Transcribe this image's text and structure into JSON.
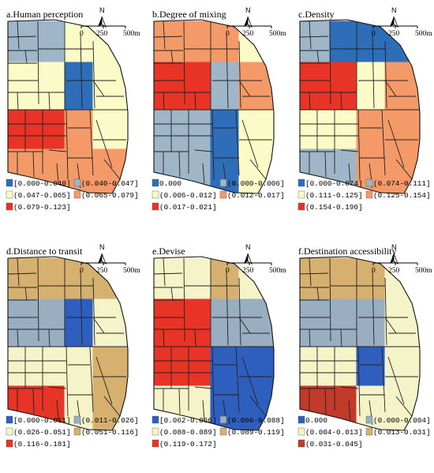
{
  "colors": {
    "c1": "#2e6db8",
    "c2": "#9fb5c8",
    "c3": "#fbfbc8",
    "c4": "#f49a68",
    "c5": "#e83426",
    "g1": "#2f5fbe",
    "g2": "#9aaec2",
    "g3": "#f5f3c8",
    "g4": "#d5b06e",
    "g5": "#c23a2a"
  },
  "scale": {
    "zero": "0",
    "mid": "250",
    "end": "500m"
  },
  "north_label": "N",
  "panels": [
    {
      "title": "a.Human perception",
      "palette": [
        "c1",
        "c2",
        "c3",
        "c4",
        "c5"
      ],
      "legend": [
        "[0.000-0.040]",
        "(0.040-0.047]",
        "(0.047-0.065]",
        "(0.065-0.079]",
        "(0.079-0.123]"
      ],
      "cells": [
        [
          2,
          2,
          3,
          3
        ],
        [
          3,
          3,
          1,
          3
        ],
        [
          5,
          5,
          4,
          3
        ],
        [
          4,
          4,
          4,
          4
        ]
      ]
    },
    {
      "title": "b.Degree of mixing",
      "palette": [
        "c1",
        "c2",
        "c3",
        "c4",
        "c5"
      ],
      "legend": [
        "0.000",
        "(0.000-0.006]",
        "(0.006-0.012]",
        "(0.012-0.017]",
        "(0.017-0.021]"
      ],
      "cells": [
        [
          4,
          4,
          4,
          3
        ],
        [
          5,
          5,
          2,
          4
        ],
        [
          2,
          2,
          1,
          3
        ],
        [
          2,
          2,
          1,
          3
        ]
      ]
    },
    {
      "title": "c.Density",
      "palette": [
        "c1",
        "c2",
        "c3",
        "c4",
        "c5"
      ],
      "legend": [
        "[0.000-0.074]",
        "(0.074-0.111]",
        "(0.111-0.125]",
        "(0.125-0.154]",
        "(0.154-0.190]"
      ],
      "cells": [
        [
          2,
          1,
          1,
          1
        ],
        [
          5,
          5,
          3,
          4
        ],
        [
          3,
          3,
          4,
          4
        ],
        [
          2,
          2,
          4,
          4
        ]
      ]
    },
    {
      "title": "d.Distance to transit",
      "palette": [
        "g1",
        "g2",
        "g3",
        "g4",
        "c5"
      ],
      "legend": [
        "[0.000-0.011]",
        "(0.011-0.026]",
        "(0.026-0.051]",
        "(0.051-0.116]",
        "(0.116-0.181]"
      ],
      "cells": [
        [
          4,
          4,
          4,
          4
        ],
        [
          2,
          2,
          1,
          3
        ],
        [
          3,
          3,
          3,
          4
        ],
        [
          5,
          5,
          3,
          4
        ]
      ]
    },
    {
      "title": "e.Devise",
      "palette": [
        "g1",
        "g2",
        "g3",
        "g4",
        "c5"
      ],
      "legend": [
        "[0.062-0.066]",
        "(0.066-0.088]",
        "(0.088-0.089]",
        "(0.089-0.119]",
        "(0.119-0.172]"
      ],
      "cells": [
        [
          3,
          3,
          4,
          3
        ],
        [
          5,
          5,
          2,
          2
        ],
        [
          5,
          5,
          1,
          1
        ],
        [
          3,
          3,
          1,
          1
        ]
      ]
    },
    {
      "title": "f.Destination accessibility",
      "palette": [
        "g1",
        "g2",
        "g3",
        "g4",
        "g5"
      ],
      "legend": [
        "0.000",
        "(0.000-0.004]",
        "(0.004-0.013]",
        "(0.013-0.031]",
        "(0.031-0.045]"
      ],
      "cells": [
        [
          4,
          4,
          4,
          3
        ],
        [
          2,
          2,
          2,
          3
        ],
        [
          3,
          3,
          1,
          3
        ],
        [
          5,
          5,
          3,
          3
        ]
      ]
    }
  ]
}
